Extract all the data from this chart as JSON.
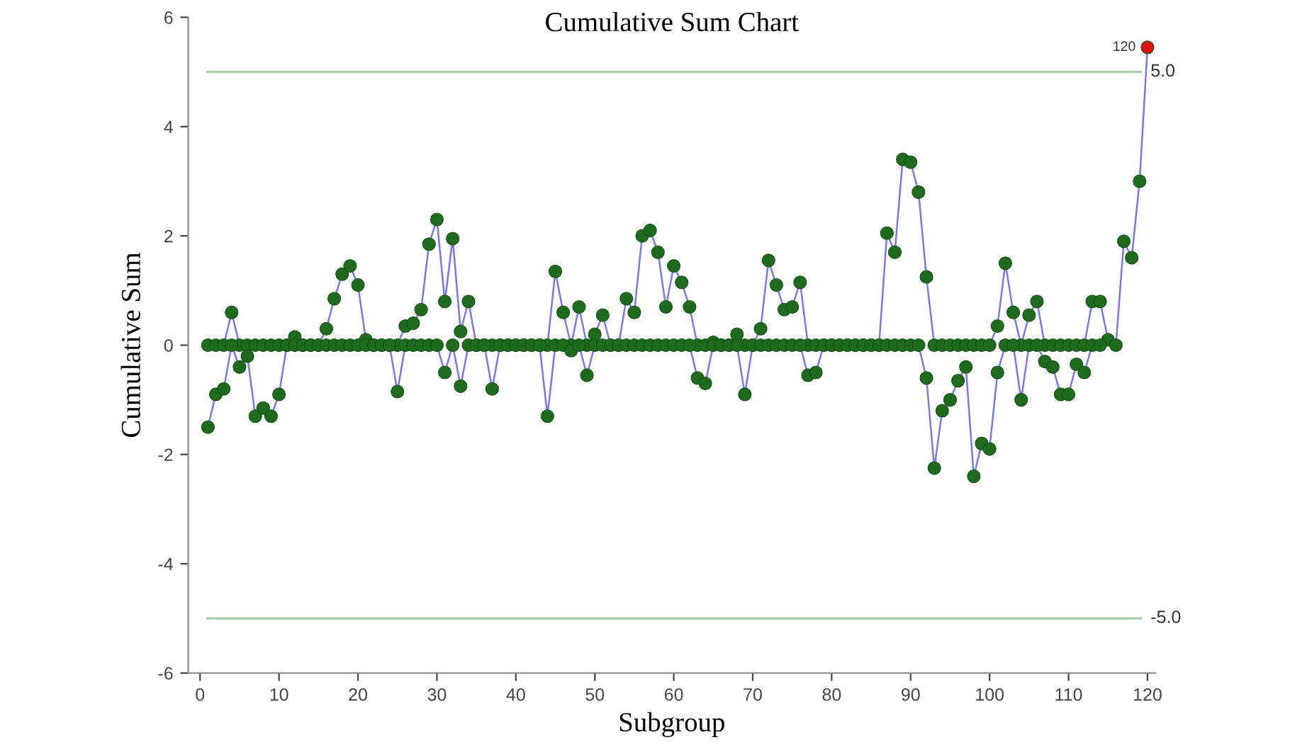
{
  "chart_data": {
    "type": "line",
    "title": "Cumulative Sum Chart",
    "xlabel": "Subgroup",
    "ylabel": "Cumulative Sum",
    "x": [
      1,
      2,
      3,
      4,
      5,
      6,
      7,
      8,
      9,
      10,
      11,
      12,
      13,
      14,
      15,
      16,
      17,
      18,
      19,
      20,
      21,
      22,
      23,
      24,
      25,
      26,
      27,
      28,
      29,
      30,
      31,
      32,
      33,
      34,
      35,
      36,
      37,
      38,
      39,
      40,
      41,
      42,
      43,
      44,
      45,
      46,
      47,
      48,
      49,
      50,
      51,
      52,
      53,
      54,
      55,
      56,
      57,
      58,
      59,
      60,
      61,
      62,
      63,
      64,
      65,
      66,
      67,
      68,
      69,
      70,
      71,
      72,
      73,
      74,
      75,
      76,
      77,
      78,
      79,
      80,
      81,
      82,
      83,
      84,
      85,
      86,
      87,
      88,
      89,
      90,
      91,
      92,
      93,
      94,
      95,
      96,
      97,
      98,
      99,
      100,
      101,
      102,
      103,
      104,
      105,
      106,
      107,
      108,
      109,
      110,
      111,
      112,
      113,
      114,
      115,
      116,
      117,
      118,
      119,
      120
    ],
    "series": [
      {
        "color": "#7878ee",
        "colors": [
          "#1e6b1e",
          "#1e6b1e",
          "#1e6b1e",
          "#1e6b1e",
          "#1e6b1e",
          "#1e6b1e",
          "#1e6b1e",
          "#1e6b1e",
          "#1e6b1e",
          "#1e6b1e",
          "#1e6b1e",
          "#1e6b1e",
          "#1e6b1e",
          "#1e6b1e",
          "#1e6b1e",
          "#1e6b1e",
          "#1e6b1e",
          "#1e6b1e",
          "#1e6b1e",
          "#1e6b1e",
          "#1e6b1e",
          "#1e6b1e",
          "#1e6b1e",
          "#1e6b1e",
          "#1e6b1e",
          "#1e6b1e",
          "#1e6b1e",
          "#1e6b1e",
          "#1e6b1e",
          "#1e6b1e",
          "#1e6b1e",
          "#1e6b1e",
          "#1e6b1e",
          "#1e6b1e",
          "#1e6b1e",
          "#1e6b1e",
          "#1e6b1e",
          "#1e6b1e",
          "#1e6b1e",
          "#1e6b1e",
          "#1e6b1e",
          "#1e6b1e",
          "#1e6b1e",
          "#1e6b1e",
          "#1e6b1e",
          "#1e6b1e",
          "#1e6b1e",
          "#1e6b1e",
          "#1e6b1e",
          "#1e6b1e",
          "#1e6b1e",
          "#1e6b1e",
          "#1e6b1e",
          "#1e6b1e",
          "#1e6b1e",
          "#1e6b1e",
          "#1e6b1e",
          "#1e6b1e",
          "#1e6b1e",
          "#1e6b1e",
          "#1e6b1e",
          "#1e6b1e",
          "#1e6b1e",
          "#1e6b1e",
          "#1e6b1e",
          "#1e6b1e",
          "#1e6b1e",
          "#1e6b1e",
          "#1e6b1e",
          "#1e6b1e",
          "#1e6b1e",
          "#1e6b1e",
          "#1e6b1e",
          "#1e6b1e",
          "#1e6b1e",
          "#1e6b1e",
          "#1e6b1e",
          "#1e6b1e",
          "#1e6b1e",
          "#1e6b1e",
          "#1e6b1e",
          "#1e6b1e",
          "#1e6b1e",
          "#1e6b1e",
          "#1e6b1e",
          "#1e6b1e",
          "#1e6b1e",
          "#1e6b1e",
          "#1e6b1e",
          "#1e6b1e",
          "#1e6b1e",
          "#1e6b1e",
          "#1e6b1e",
          "#1e6b1e",
          "#1e6b1e",
          "#1e6b1e",
          "#1e6b1e",
          "#1e6b1e",
          "#1e6b1e",
          "#1e6b1e",
          "#1e6b1e",
          "#1e6b1e",
          "#1e6b1e",
          "#1e6b1e",
          "#1e6b1e",
          "#1e6b1e",
          "#1e6b1e",
          "#1e6b1e",
          "#1e6b1e",
          "#1e6b1e",
          "#1e6b1e",
          "#1e6b1e",
          "#1e6b1e",
          "#1e6b1e",
          "#1e6b1e",
          "#1e6b1e",
          "#1e6b1e",
          "#1e6b1e",
          "#1e6b1e",
          "#e01010"
        ],
        "values": [
          0,
          0,
          0,
          0.6,
          0,
          0,
          0,
          0,
          0,
          0,
          0,
          0.15,
          0,
          0,
          0,
          0.3,
          0.85,
          1.3,
          1.45,
          1.1,
          0.1,
          0,
          0,
          0,
          0,
          0.35,
          0.4,
          0.65,
          1.85,
          2.3,
          0.8,
          1.95,
          0.25,
          0.8,
          0,
          0,
          0,
          0,
          0,
          0,
          0,
          0,
          0,
          0,
          1.35,
          0.6,
          0,
          0.7,
          0,
          0.2,
          0.55,
          0,
          0,
          0.85,
          0.6,
          2.0,
          2.1,
          1.7,
          0.7,
          1.45,
          1.15,
          0.7,
          0,
          0,
          0.05,
          0,
          0,
          0.2,
          0,
          0,
          0.3,
          1.55,
          1.1,
          0.65,
          0.7,
          1.15,
          0,
          0,
          0,
          0,
          0,
          0,
          0,
          0,
          0,
          0,
          2.05,
          1.7,
          3.4,
          3.35,
          2.8,
          1.25,
          0,
          0,
          0,
          0,
          0,
          0,
          0,
          0,
          0.35,
          1.5,
          0.6,
          0,
          0.55,
          0.8,
          0,
          0,
          0,
          0,
          0,
          0,
          0.8,
          0.8,
          0.1,
          0,
          1.9,
          1.6,
          3.0,
          5.45
        ]
      },
      {
        "color": "#7878ee",
        "colors": [
          "#1e6b1e",
          "#1e6b1e",
          "#1e6b1e",
          "#1e6b1e",
          "#1e6b1e",
          "#1e6b1e",
          "#1e6b1e",
          "#1e6b1e",
          "#1e6b1e",
          "#1e6b1e",
          "#1e6b1e",
          "#1e6b1e",
          "#1e6b1e",
          "#1e6b1e",
          "#1e6b1e",
          "#1e6b1e",
          "#1e6b1e",
          "#1e6b1e",
          "#1e6b1e",
          "#1e6b1e",
          "#1e6b1e",
          "#1e6b1e",
          "#1e6b1e",
          "#1e6b1e",
          "#1e6b1e",
          "#1e6b1e",
          "#1e6b1e",
          "#1e6b1e",
          "#1e6b1e",
          "#1e6b1e",
          "#1e6b1e",
          "#1e6b1e",
          "#1e6b1e",
          "#1e6b1e",
          "#1e6b1e",
          "#1e6b1e",
          "#1e6b1e",
          "#1e6b1e",
          "#1e6b1e",
          "#1e6b1e",
          "#1e6b1e",
          "#1e6b1e",
          "#1e6b1e",
          "#1e6b1e",
          "#1e6b1e",
          "#1e6b1e",
          "#1e6b1e",
          "#1e6b1e",
          "#1e6b1e",
          "#1e6b1e",
          "#1e6b1e",
          "#1e6b1e",
          "#1e6b1e",
          "#1e6b1e",
          "#1e6b1e",
          "#1e6b1e",
          "#1e6b1e",
          "#1e6b1e",
          "#1e6b1e",
          "#1e6b1e",
          "#1e6b1e",
          "#1e6b1e",
          "#1e6b1e",
          "#1e6b1e",
          "#1e6b1e",
          "#1e6b1e",
          "#1e6b1e",
          "#1e6b1e",
          "#1e6b1e",
          "#1e6b1e",
          "#1e6b1e",
          "#1e6b1e",
          "#1e6b1e",
          "#1e6b1e",
          "#1e6b1e",
          "#1e6b1e",
          "#1e6b1e",
          "#1e6b1e",
          "#1e6b1e",
          "#1e6b1e",
          "#1e6b1e",
          "#1e6b1e",
          "#1e6b1e",
          "#1e6b1e",
          "#1e6b1e",
          "#1e6b1e",
          "#1e6b1e",
          "#1e6b1e",
          "#1e6b1e",
          "#1e6b1e",
          "#1e6b1e",
          "#1e6b1e",
          "#1e6b1e",
          "#1e6b1e",
          "#1e6b1e",
          "#1e6b1e",
          "#1e6b1e",
          "#1e6b1e",
          "#1e6b1e",
          "#1e6b1e",
          "#1e6b1e",
          "#1e6b1e",
          "#1e6b1e",
          "#1e6b1e",
          "#1e6b1e",
          "#1e6b1e",
          "#1e6b1e",
          "#1e6b1e",
          "#1e6b1e",
          "#1e6b1e",
          "#1e6b1e",
          "#1e6b1e",
          "#1e6b1e",
          "#1e6b1e",
          "#1e6b1e",
          "#1e6b1e",
          "#1e6b1e",
          "#1e6b1e",
          "#1e6b1e",
          "#1e6b1e"
        ],
        "values": [
          -1.5,
          -0.9,
          -0.8,
          0,
          -0.4,
          -0.2,
          -1.3,
          -1.15,
          -1.3,
          -0.9,
          0,
          0,
          0,
          0,
          0,
          0,
          0,
          0,
          0,
          0,
          0,
          0,
          0,
          0,
          -0.85,
          0,
          0,
          0,
          0,
          0,
          -0.5,
          0,
          -0.75,
          0,
          0,
          0,
          -0.8,
          0,
          0,
          0,
          0,
          0,
          0,
          -1.3,
          0,
          0,
          -0.1,
          0,
          -0.55,
          0,
          0,
          0,
          0,
          0,
          0,
          0,
          0,
          0,
          0,
          0,
          0,
          0,
          -0.6,
          -0.7,
          0,
          0,
          0,
          0,
          -0.9,
          0,
          0,
          0,
          0,
          0,
          0,
          0,
          -0.55,
          -0.5,
          0,
          0,
          0,
          0,
          0,
          0,
          0,
          0,
          0,
          0,
          0,
          0,
          0,
          -0.6,
          -2.25,
          -1.2,
          -1.0,
          -0.65,
          -0.4,
          -2.4,
          -1.8,
          -1.9,
          -0.5,
          0,
          0,
          -1.0,
          0,
          0,
          -0.3,
          -0.4,
          -0.9,
          -0.9,
          -0.35,
          -0.5,
          0,
          0,
          null,
          null,
          null,
          null,
          null,
          null
        ]
      }
    ],
    "marker": "circle",
    "line_style": "solid",
    "legend": false,
    "grid": false,
    "xlim": [
      -1.5,
      121
    ],
    "xticks": [
      0,
      10,
      20,
      30,
      40,
      50,
      60,
      70,
      80,
      90,
      100,
      110,
      120
    ],
    "ylim": [
      -6,
      6
    ],
    "yticks": [
      -6,
      -4,
      -2,
      0,
      2,
      4,
      6
    ],
    "ref_lines": [
      {
        "axis": "y",
        "value": 5.0,
        "label": "5.0",
        "color": "#a8d0a8"
      },
      {
        "axis": "y",
        "value": -5.0,
        "label": "-5.0",
        "color": "#a8d0a8"
      }
    ],
    "annotations": [
      {
        "text": "120",
        "x": 120,
        "y": 5.45
      }
    ]
  }
}
